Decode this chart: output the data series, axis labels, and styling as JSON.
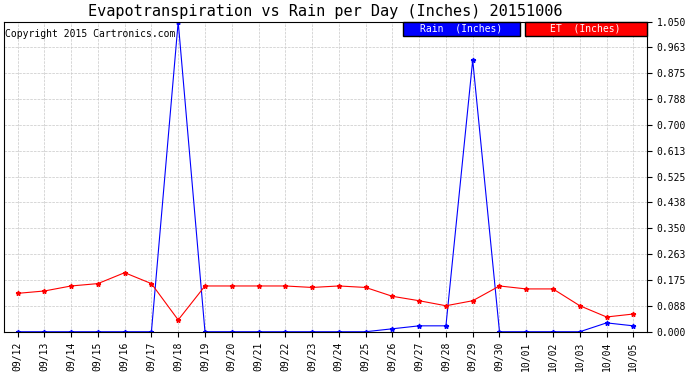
{
  "title": "Evapotranspiration vs Rain per Day (Inches) 20151006",
  "copyright": "Copyright 2015 Cartronics.com",
  "x_labels": [
    "09/12",
    "09/13",
    "09/14",
    "09/15",
    "09/16",
    "09/17",
    "09/18",
    "09/19",
    "09/20",
    "09/21",
    "09/22",
    "09/23",
    "09/24",
    "09/25",
    "09/26",
    "09/27",
    "09/28",
    "09/29",
    "09/30",
    "10/01",
    "10/02",
    "10/03",
    "10/04",
    "10/05"
  ],
  "rain_values": [
    0.0,
    0.0,
    0.0,
    0.0,
    0.0,
    0.0,
    1.05,
    0.0,
    0.0,
    0.0,
    0.0,
    0.0,
    0.0,
    0.0,
    0.01,
    0.02,
    0.02,
    0.92,
    0.0,
    0.0,
    0.0,
    0.0,
    0.03,
    0.02
  ],
  "et_values": [
    0.13,
    0.138,
    0.155,
    0.163,
    0.2,
    0.163,
    0.04,
    0.155,
    0.155,
    0.155,
    0.155,
    0.15,
    0.155,
    0.15,
    0.12,
    0.105,
    0.088,
    0.105,
    0.155,
    0.145,
    0.145,
    0.088,
    0.05,
    0.06
  ],
  "rain_color": "#0000FF",
  "et_color": "#FF0000",
  "background_color": "#FFFFFF",
  "grid_color": "#C8C8C8",
  "y_ticks": [
    0.0,
    0.088,
    0.175,
    0.263,
    0.35,
    0.438,
    0.525,
    0.613,
    0.7,
    0.788,
    0.875,
    0.963,
    1.05
  ],
  "ylim": [
    0.0,
    1.05
  ],
  "legend_rain_label": "Rain  (Inches)",
  "legend_et_label": "ET  (Inches)",
  "title_fontsize": 11,
  "tick_fontsize": 7,
  "copyright_fontsize": 7
}
